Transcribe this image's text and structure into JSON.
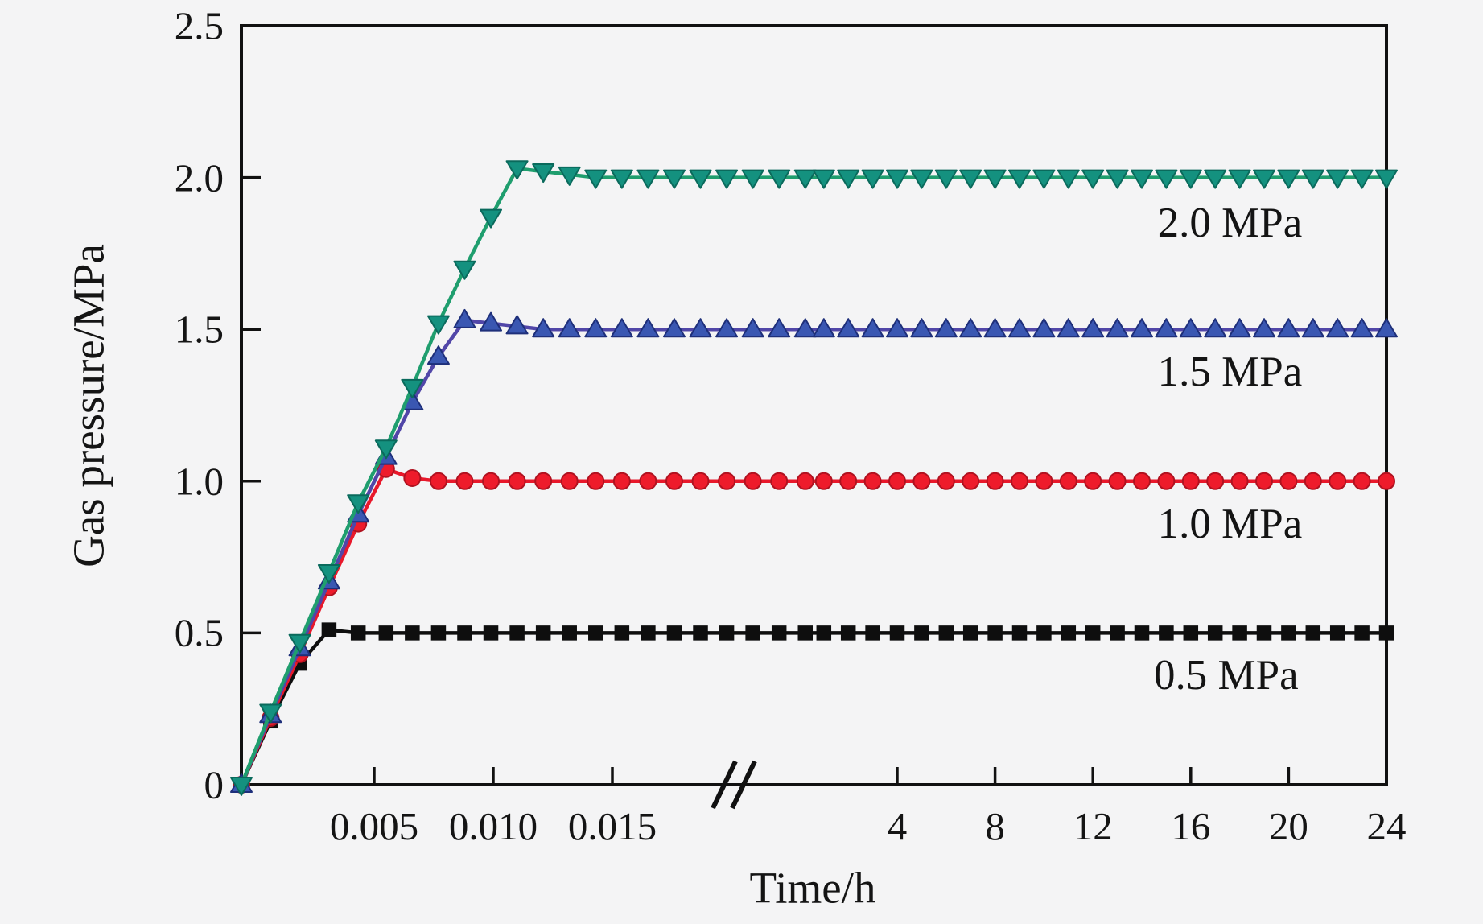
{
  "figure": {
    "background": "#f4f4f5",
    "axis_color": "#111111",
    "text_color": "#141414"
  },
  "chart_data": {
    "type": "line",
    "title": "",
    "xlabel": "Time/h",
    "ylabel": "Gas pressure/MPa",
    "ylim": [
      0,
      2.5
    ],
    "grid": false,
    "legend": "none (labels annotated inside plot)",
    "x_axis": {
      "broken_axis": true,
      "left_segment": {
        "units": "hours",
        "range": [
          0,
          0.019
        ],
        "ticks": [
          {
            "value": 0.005,
            "label": "0.005"
          },
          {
            "value": 0.01,
            "label": "0.010"
          },
          {
            "value": 0.015,
            "label": "0.015"
          }
        ]
      },
      "right_segment": {
        "units": "hours",
        "range": [
          0,
          24
        ],
        "ticks": [
          {
            "value": 4,
            "label": "4"
          },
          {
            "value": 8,
            "label": "8"
          },
          {
            "value": 12,
            "label": "12"
          },
          {
            "value": 16,
            "label": "16"
          },
          {
            "value": 20,
            "label": "20"
          },
          {
            "value": 24,
            "label": "24"
          }
        ]
      }
    },
    "y_ticks": [
      {
        "value": 0.0,
        "label": "0"
      },
      {
        "value": 0.5,
        "label": "0.5"
      },
      {
        "value": 1.0,
        "label": "1.0"
      },
      {
        "value": 1.5,
        "label": "1.5"
      },
      {
        "value": 2.0,
        "label": "2.0"
      },
      {
        "value": 2.5,
        "label": "2.5"
      }
    ],
    "right_hours": [
      1,
      2,
      3,
      4,
      5,
      6,
      7,
      8,
      9,
      10,
      11,
      12,
      13,
      14,
      15,
      16,
      17,
      18,
      19,
      20,
      21,
      22,
      23,
      24
    ],
    "series": [
      {
        "name": "0.5 MPa",
        "marker": "square",
        "line_color": "#0e0e0e",
        "marker_fill": "#0e0e0e",
        "marker_edge": "#0e0e0e",
        "plateau_value": 0.5,
        "left_points": [
          [
            0,
            0
          ],
          [
            0.0011,
            0.21
          ],
          [
            0.0022,
            0.4
          ],
          [
            0.0033,
            0.51
          ],
          [
            0.0044,
            0.5
          ],
          [
            0.0055,
            0.5
          ],
          [
            0.0066,
            0.5
          ],
          [
            0.0077,
            0.5
          ],
          [
            0.0088,
            0.5
          ],
          [
            0.0099,
            0.5
          ],
          [
            0.011,
            0.5
          ],
          [
            0.0121,
            0.5
          ],
          [
            0.0132,
            0.5
          ],
          [
            0.0143,
            0.5
          ],
          [
            0.0154,
            0.5
          ],
          [
            0.0165,
            0.5
          ],
          [
            0.0176,
            0.5
          ],
          [
            0.0187,
            0.5
          ],
          [
            0.0198,
            0.5
          ],
          [
            0.0209,
            0.5
          ],
          [
            0.022,
            0.5
          ],
          [
            0.0231,
            0.5
          ]
        ]
      },
      {
        "name": "1.0 MPa",
        "marker": "circle",
        "line_color": "#e8182b",
        "marker_fill": "#ee1b2b",
        "marker_edge": "#b01220",
        "plateau_value": 1.0,
        "left_points": [
          [
            0,
            0
          ],
          [
            0.0011,
            0.22
          ],
          [
            0.0022,
            0.43
          ],
          [
            0.0033,
            0.65
          ],
          [
            0.0044,
            0.86
          ],
          [
            0.0055,
            1.04
          ],
          [
            0.0066,
            1.01
          ],
          [
            0.0077,
            1.0
          ],
          [
            0.0088,
            1.0
          ],
          [
            0.0099,
            1.0
          ],
          [
            0.011,
            1.0
          ],
          [
            0.0121,
            1.0
          ],
          [
            0.0132,
            1.0
          ],
          [
            0.0143,
            1.0
          ],
          [
            0.0154,
            1.0
          ],
          [
            0.0165,
            1.0
          ],
          [
            0.0176,
            1.0
          ],
          [
            0.0187,
            1.0
          ],
          [
            0.0198,
            1.0
          ],
          [
            0.0209,
            1.0
          ],
          [
            0.022,
            1.0
          ],
          [
            0.0231,
            1.0
          ]
        ]
      },
      {
        "name": "1.5 MPa",
        "marker": "triangle-up",
        "line_color": "#5146a8",
        "marker_fill": "#3a57b2",
        "marker_edge": "#1e2f7a",
        "plateau_value": 1.5,
        "left_points": [
          [
            0,
            0
          ],
          [
            0.0011,
            0.23
          ],
          [
            0.0022,
            0.45
          ],
          [
            0.0033,
            0.67
          ],
          [
            0.0044,
            0.89
          ],
          [
            0.0055,
            1.08
          ],
          [
            0.0066,
            1.26
          ],
          [
            0.0077,
            1.41
          ],
          [
            0.0088,
            1.53
          ],
          [
            0.0099,
            1.52
          ],
          [
            0.011,
            1.51
          ],
          [
            0.0121,
            1.5
          ],
          [
            0.0132,
            1.5
          ],
          [
            0.0143,
            1.5
          ],
          [
            0.0154,
            1.5
          ],
          [
            0.0165,
            1.5
          ],
          [
            0.0176,
            1.5
          ],
          [
            0.0187,
            1.5
          ],
          [
            0.0198,
            1.5
          ],
          [
            0.0209,
            1.5
          ],
          [
            0.022,
            1.5
          ],
          [
            0.0231,
            1.5
          ]
        ]
      },
      {
        "name": "2.0 MPa",
        "marker": "triangle-down",
        "line_color": "#1f9e6e",
        "marker_fill": "#14917f",
        "marker_edge": "#0a6a5c",
        "plateau_value": 2.0,
        "left_points": [
          [
            0,
            0
          ],
          [
            0.0011,
            0.24
          ],
          [
            0.0022,
            0.47
          ],
          [
            0.0033,
            0.7
          ],
          [
            0.0044,
            0.93
          ],
          [
            0.0055,
            1.11
          ],
          [
            0.0066,
            1.31
          ],
          [
            0.0077,
            1.52
          ],
          [
            0.0088,
            1.7
          ],
          [
            0.0099,
            1.87
          ],
          [
            0.011,
            2.03
          ],
          [
            0.0121,
            2.02
          ],
          [
            0.0132,
            2.01
          ],
          [
            0.0143,
            2.0
          ],
          [
            0.0154,
            2.0
          ],
          [
            0.0165,
            2.0
          ],
          [
            0.0176,
            2.0
          ],
          [
            0.0187,
            2.0
          ],
          [
            0.0198,
            2.0
          ],
          [
            0.0209,
            2.0
          ],
          [
            0.022,
            2.0
          ],
          [
            0.0231,
            2.0
          ]
        ]
      }
    ],
    "annotations": [
      {
        "text": "2.0 MPa",
        "x_hour": 17.6,
        "y_value": 1.85
      },
      {
        "text": "1.5 MPa",
        "x_hour": 17.6,
        "y_value": 1.36
      },
      {
        "text": "1.0 MPa",
        "x_hour": 17.6,
        "y_value": 0.86
      },
      {
        "text": "0.5 MPa",
        "x_hour": 17.45,
        "y_value": 0.36
      }
    ]
  }
}
